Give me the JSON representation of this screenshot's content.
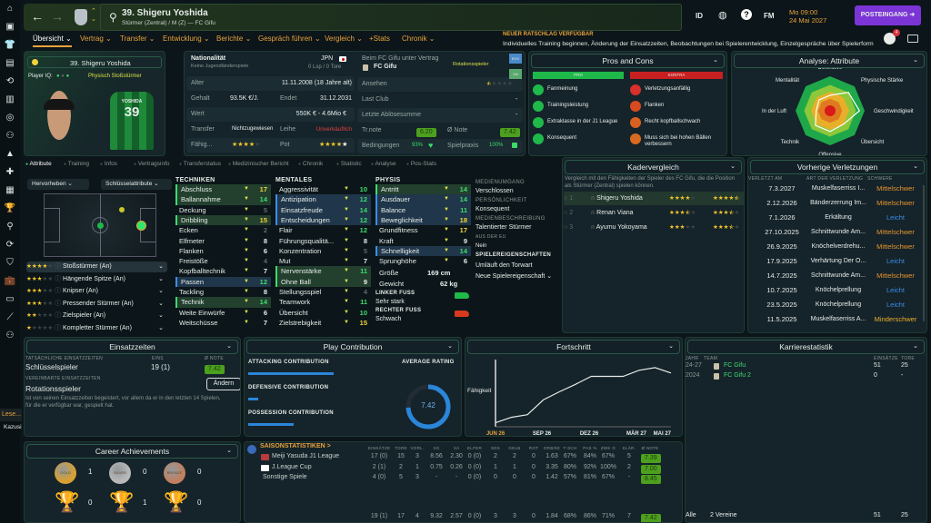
{
  "sidebar": {
    "icons": [
      "home-icon",
      "inbox-icon",
      "squad-icon",
      "clipboard-icon",
      "dynamics-icon",
      "report-icon",
      "ball-icon",
      "staff-icon",
      "training-icon",
      "medical-icon",
      "calendar-icon",
      "trophy-icon",
      "search-icon",
      "transfer-icon",
      "club-icon",
      "finance-icon",
      "stadium-icon",
      "chart-icon",
      "people-icon"
    ],
    "bottom_items": [
      "Lese...",
      "Kazusi"
    ]
  },
  "header": {
    "title": "39. Shigeru Yoshida",
    "subtitle": "Stürmer (Zentral) / M (Z) — FC Gifu",
    "icons": [
      "ID",
      "globe",
      "?",
      "FM"
    ],
    "time": "Mo 09:00",
    "date": "24 Mai 2027",
    "inbox_button": "POSTEINGANG",
    "notification_count": "4"
  },
  "nav": {
    "tabs": [
      "Übersicht ⌄",
      "Vertrag ⌄",
      "Transfer ⌄",
      "Entwicklung ⌄",
      "Berichte ⌄",
      "Gespräch führen ⌄",
      "Vergleich ⌄",
      "+Stats",
      "Chronik ⌄"
    ],
    "active": 0
  },
  "advice": {
    "title": "NEUER RATSCHLAG VERFÜGBAR",
    "text": "Individuelles Training beginnen, Änderung der Einsatzzeiten, Beobachtungen bei Spielerentwicklung, Einzelgespräche über Spielerform"
  },
  "player_card": {
    "name": "39. Shigeru Yoshida",
    "iq_label": "Player IQ:",
    "role": "Physisch Stoßstürmer",
    "shirt_name": "YOSHIDA",
    "shirt_number": "39"
  },
  "info": {
    "nationality_label": "Nationalität",
    "nationality_sub": "Keine Jugendländerspiele",
    "nation": "JPN",
    "caps": "0 Lsp / 0 Tore",
    "age_label": "Alter",
    "age": "11.11.2008 (18 Jahre alt)",
    "wage_label": "Gehalt",
    "wage": "93.5K €/J.",
    "ends_label": "Endet",
    "ends": "31.12.2031",
    "value_label": "Wert",
    "value": "550K € - 4.6Mio €",
    "transfer_label": "Transfer",
    "transfer": "Nichtzugewiesen",
    "loan_label": "Leihe",
    "loan": "Unverkäuflich",
    "ability_label": "Fähig...",
    "ability_stars": 4,
    "potential_label": "Pot",
    "potential_stars": 4.5,
    "contract_label": "Beim FC Gifu unter Vertrag",
    "club": "FC Gifu",
    "squad_status": "Rotationsspieler",
    "tags": [
      "EGV",
      "Vin"
    ],
    "reputation_label": "Ansehen",
    "reputation_stars": 0.5,
    "last_club_label": "Last Club",
    "last_club": "-",
    "last_fee_label": "Letzte Ablösesumme",
    "last_fee": "-",
    "training_label": "Tr.note",
    "training": "6.20",
    "rating_label": "Ø Note",
    "rating": "7.42",
    "condition_label": "Bedingungen",
    "condition": "93%",
    "sharpness_label": "Spielpraxis",
    "sharpness": "100%"
  },
  "pros_cons": {
    "title": "Pros and Cons",
    "pro_label": "PRO",
    "con_label": "KONTRA",
    "pros": [
      "Fanmeinung",
      "Trainingsleistung",
      "Extraklasse in der J1 League",
      "Konsequent"
    ],
    "cons": [
      "Verletzungsanfällig",
      "Flanken",
      "Recht kopfballschwach",
      "Muss sich bei hohen Bällen verbessern"
    ]
  },
  "analysis": {
    "title": "Analyse: Attribute",
    "axes": [
      "Defensive",
      "Physische Stärke",
      "Geschwindigkeit",
      "Übersicht",
      "Offensive",
      "Technik",
      "In der Luft",
      "Mentalität"
    ],
    "values": [
      0.45,
      0.75,
      0.85,
      0.55,
      0.6,
      0.6,
      0.4,
      0.45
    ]
  },
  "subtabs": [
    "Attribute",
    "Training",
    "Infos",
    "Vertragsinfo",
    "Transferstatus",
    "Medizinischer Bericht",
    "Chronik",
    "Statistic",
    "Analyse",
    "Pos-Stats"
  ],
  "positions": {
    "highlight_dropdown": "Hervorheben",
    "key_attr_dropdown": "Schlüsselattribute",
    "roles": [
      {
        "stars": 4,
        "name": "Stoßstürmer (An)"
      },
      {
        "stars": 3,
        "name": "Hängende Spitze (An)"
      },
      {
        "stars": 3,
        "name": "Knipser (An)"
      },
      {
        "stars": 3,
        "name": "Pressender Stürmer (An)"
      },
      {
        "stars": 2,
        "name": "Zielspieler (An)"
      },
      {
        "stars": 1,
        "name": "Kompletter Stürmer (An)"
      }
    ]
  },
  "attributes": {
    "technical_title": "TECHNIKEN",
    "mental_title": "MENTALES",
    "physical_title": "PHYSIS",
    "technical": [
      [
        "Abschluss",
        17,
        "g"
      ],
      [
        "Ballannahme",
        14,
        "g"
      ],
      [
        "Deckung",
        5,
        ""
      ],
      [
        "Dribbling",
        15,
        "g"
      ],
      [
        "Ecken",
        2,
        ""
      ],
      [
        "Elfmeter",
        8,
        ""
      ],
      [
        "Flanken",
        6,
        ""
      ],
      [
        "Freistöße",
        4,
        ""
      ],
      [
        "Kopfballtechnik",
        7,
        ""
      ],
      [
        "Passen",
        12,
        "b"
      ],
      [
        "Tackling",
        8,
        ""
      ],
      [
        "Technik",
        14,
        "g"
      ],
      [
        "Weite Einwürfe",
        6,
        ""
      ],
      [
        "Weitschüsse",
        7,
        ""
      ]
    ],
    "mental": [
      [
        "Aggressivität",
        10,
        ""
      ],
      [
        "Antizipation",
        12,
        "b"
      ],
      [
        "Einsatzfreude",
        14,
        "b"
      ],
      [
        "Entscheidungen",
        12,
        "b"
      ],
      [
        "Flair",
        12,
        ""
      ],
      [
        "Führungsqualitä...",
        8,
        ""
      ],
      [
        "Konzentration",
        5,
        ""
      ],
      [
        "Mut",
        7,
        ""
      ],
      [
        "Nervenstärke",
        11,
        "g"
      ],
      [
        "Ohne Ball",
        9,
        "g"
      ],
      [
        "Stellungsspiel",
        4,
        ""
      ],
      [
        "Teamwork",
        11,
        ""
      ],
      [
        "Übersicht",
        10,
        ""
      ],
      [
        "Zielstrebigkeit",
        15,
        ""
      ]
    ],
    "physical": [
      [
        "Antritt",
        14,
        "g"
      ],
      [
        "Ausdauer",
        14,
        "b"
      ],
      [
        "Balance",
        11,
        "b"
      ],
      [
        "Beweglichkeit",
        18,
        "b"
      ],
      [
        "Grundfitness",
        17,
        ""
      ],
      [
        "Kraft",
        9,
        ""
      ],
      [
        "Schnelligkeit",
        14,
        "b"
      ],
      [
        "Sprunghöhe",
        6,
        ""
      ]
    ],
    "height_label": "Größe",
    "height": "169 cm",
    "weight_label": "Gewicht",
    "weight": "62 kg",
    "left_foot_label": "LINKER FUSS",
    "left_foot": "Sehr stark",
    "right_foot_label": "RECHTER FUSS",
    "right_foot": "Schwach"
  },
  "personal": {
    "media_label": "MEDIENUMGANG",
    "media": "Verschlossen",
    "personality_label": "PERSÖNLICHKEIT",
    "personality": "Konsequent",
    "media_desc_label": "MEDIENBESCHREIBUNG",
    "media_desc": "Talentierter Stürmer",
    "eu_label": "AUS DER EU",
    "eu": "Nein",
    "traits_label": "SPIELEREIGENSCHAFTEN",
    "traits": [
      "Umläuft den Torwart"
    ],
    "new_trait": "Neue Spielereigenschaft"
  },
  "squad_compare": {
    "title": "Kadervergleich",
    "desc": "Vergleich mit den Fähigkeiten der Spieler des FC Gifu, die die Position als Stürmer (Zentral) spielen können.",
    "rows": [
      {
        "rank": "1",
        "name": "Shigeru Yoshida",
        "ca": 4,
        "pa": 4.5
      },
      {
        "rank": "2",
        "name": "Renan Viana",
        "ca": 3.5,
        "pa": 3.5
      },
      {
        "rank": "3",
        "name": "Ayumu Yokoyama",
        "ca": 3,
        "pa": 3.5
      }
    ]
  },
  "injuries": {
    "title": "Vorherige Verletzungen",
    "headers": [
      "VERLETZT AM",
      "ART DER VERLETZUNG",
      "SCHWERE"
    ],
    "rows": [
      [
        "7.3.2027",
        "Muskelfaserriss I...",
        "Mittelschwer",
        "o"
      ],
      [
        "2.12.2026",
        "Bänderzerrung Im...",
        "Mittelschwer",
        "o"
      ],
      [
        "7.1.2026",
        "Erkältung",
        "Leicht",
        "b"
      ],
      [
        "27.10.2025",
        "Schnittwunde Am...",
        "Mittelschwer",
        "o"
      ],
      [
        "26.9.2025",
        "Knöchelverdrehu...",
        "Mittelschwer",
        "o"
      ],
      [
        "17.9.2025",
        "Verhärtung Der O...",
        "Leicht",
        "b"
      ],
      [
        "14.7.2025",
        "Schnittwunde Am...",
        "Mittelschwer",
        "o"
      ],
      [
        "10.7.2025",
        "Knöchelprellung",
        "Leicht",
        "b"
      ],
      [
        "23.5.2025",
        "Knöchelprellung",
        "Leicht",
        "b"
      ],
      [
        "11.5.2025",
        "Muskelfaserriss A...",
        "Minderschwer",
        "y"
      ]
    ]
  },
  "playing_time": {
    "title": "Einsatzzeiten",
    "actual_label": "TATSÄCHLICHE EINSATZZEITEN",
    "apps_label": "EINS",
    "rating_label": "Ø NOTE",
    "actual": "Schlüsselspieler",
    "apps": "19 (1)",
    "rating": "7.42",
    "agreed_label": "VEREINBARTE EINSATZZEITEN",
    "agreed": "Rotationsspieler",
    "change_button": "Ändern",
    "note": "Ist von seinen Einsatzzeiten begeistert, vor allem da er in den letzten 14 Spielen, für die er verfügbar war, gespielt hat."
  },
  "contribution": {
    "title": "Play Contribution",
    "attacking_label": "ATTACKING CONTRIBUTION",
    "attacking": 0.85,
    "defensive_label": "DEFENSIVE CONTRIBUTION",
    "defensive": 0.1,
    "possession_label": "POSSESSION CONTRIBUTION",
    "possession": 0.45,
    "avg_label": "AVERAGE RATING",
    "avg": "7.42",
    "avg_fraction": 0.742
  },
  "progress": {
    "title": "Fortschritt",
    "ylabel": "Fähigkeit",
    "xticks": [
      "JUN 26",
      "SEP 26",
      "DEZ 26",
      "MÄR 27",
      "MAI 27"
    ],
    "values": [
      6,
      14,
      18,
      40,
      52,
      63,
      75,
      75,
      75,
      84,
      88,
      80
    ]
  },
  "career": {
    "title": "Karrierestatistik",
    "headers": [
      "JAHR",
      "TEAM",
      "EINSÄTZE",
      "TORE"
    ],
    "rows": [
      [
        "24-27",
        "FC Gifu",
        "51",
        "25"
      ],
      [
        "2024",
        "FC Gifu 2",
        "0",
        "-"
      ]
    ],
    "total": [
      "Alle",
      "2 Vereine",
      "51",
      "25"
    ]
  },
  "achievements": {
    "title": "Career Achievements",
    "medals": [
      [
        "GOLD",
        "1"
      ],
      [
        "SILVER",
        "0"
      ],
      [
        "BRONZE",
        "0"
      ]
    ],
    "trophies": [
      "0",
      "1",
      "0"
    ]
  },
  "season": {
    "title": "SAISONSTATISTIKEN >",
    "headers": [
      "EINSÄTZE",
      "TORE",
      "VORL.",
      "XG",
      "XA",
      "ELFER",
      "SDS",
      "GELB",
      "ROT",
      "DRB/90",
      "T-SCH",
      "PAS %",
      "ZWK G",
      "KLÄR.",
      "Ø NOTE"
    ],
    "rows": [
      {
        "name": "Meiji Yasuda J1 League",
        "vals": [
          "17 (0)",
          "15",
          "3",
          "8.56",
          "2.30",
          "0 (0)",
          "2",
          "2",
          "0",
          "1.63",
          "67%",
          "84%",
          "67%",
          "5",
          "7.39"
        ]
      },
      {
        "name": "J.League Cup",
        "vals": [
          "2 (1)",
          "2",
          "1",
          "0.75",
          "0.26",
          "0 (0)",
          "1",
          "1",
          "0",
          "3.35",
          "80%",
          "92%",
          "100%",
          "2",
          "7.00"
        ]
      },
      {
        "name": "Sonstige Spiele",
        "vals": [
          "4 (0)",
          "5",
          "3",
          "-",
          "-",
          "0 (0)",
          "0",
          "0",
          "0",
          "1.42",
          "57%",
          "81%",
          "67%",
          "-",
          "8.45"
        ]
      }
    ],
    "total": [
      "19 (1)",
      "17",
      "4",
      "9.32",
      "2.57",
      "0 (0)",
      "3",
      "3",
      "0",
      "1.84",
      "68%",
      "86%",
      "71%",
      "7",
      "7.42"
    ]
  }
}
